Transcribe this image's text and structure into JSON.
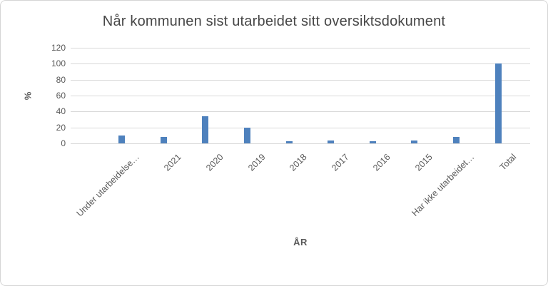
{
  "frame": {
    "background": "#ffffff",
    "border_color": "#d5d5d5"
  },
  "chart_data": {
    "type": "bar",
    "title": "Når kommunen sist utarbeidet sitt oversiktsdokument",
    "xlabel": "ÅR",
    "ylabel": "%",
    "categories": [
      "Under utarbeidelse…",
      "2021",
      "2020",
      "2019",
      "2018",
      "2017",
      "2016",
      "2015",
      "Har ikke utarbeidet…",
      "Total"
    ],
    "values": [
      10,
      8,
      34,
      20,
      3,
      4,
      3,
      4,
      8,
      100
    ],
    "ylim": [
      0,
      120
    ],
    "yticks": [
      0,
      20,
      40,
      60,
      80,
      100,
      120
    ],
    "grid": true,
    "legend": false,
    "bar_color": "#4e81bd",
    "gridline_color": "#d9d9d9",
    "text_color": "#595959",
    "title_color": "#474747"
  }
}
